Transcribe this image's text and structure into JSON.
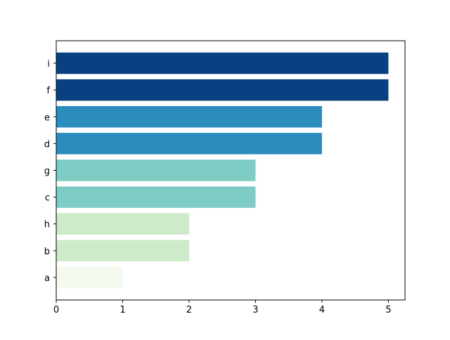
{
  "chart_data": {
    "type": "barh",
    "categories": [
      "a",
      "b",
      "h",
      "c",
      "g",
      "d",
      "e",
      "f",
      "i"
    ],
    "values": [
      1,
      2,
      2,
      3,
      3,
      4,
      4,
      5,
      5
    ],
    "colors": [
      "#f4fbee",
      "#cdebc8",
      "#cdebc8",
      "#7ecdc4",
      "#7ecdc4",
      "#2b8cbe",
      "#2b8cbe",
      "#084081",
      "#084081"
    ],
    "xlim": [
      0,
      5.25
    ],
    "xticks": [
      0,
      1,
      2,
      3,
      4,
      5
    ],
    "grid": false
  }
}
